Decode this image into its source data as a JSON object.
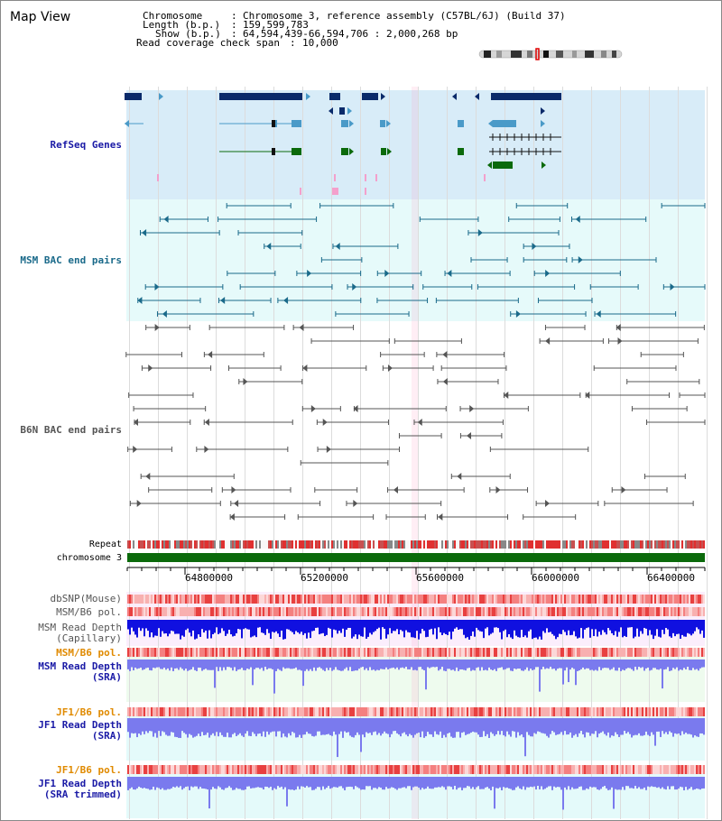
{
  "header": {
    "view_title": "Map View",
    "chromosome_label": "Chromosome",
    "chromosome_value": "Chromosome 3, reference assembly (C57BL/6J) (Build 37)",
    "length_label": "Length (b.p.)",
    "length_value": "159,599,783",
    "show_label": "Show (b.p.)",
    "show_value": "64,594,439-66,594,706 : 2,000,268 bp",
    "coverage_label": "Read coverage check span",
    "coverage_value": "10,000"
  },
  "tracks": {
    "refseq": "RefSeq Genes",
    "msm_bac": "MSM BAC end pairs",
    "b6n_bac": "B6N BAC end pairs",
    "repeat": "Repeat",
    "chromosome": "chromosome 3",
    "dbsnp": "dbSNP(Mouse)",
    "msm_b6_pol_1": "MSM/B6 pol.",
    "msm_read_depth_cap_1": "MSM Read Depth",
    "msm_read_depth_cap_2": "(Capillary)",
    "msm_b6_pol_2": "MSM/B6 pol.",
    "msm_read_depth_sra_1": "MSM Read Depth",
    "msm_read_depth_sra_2": "(SRA)",
    "jf1_b6_pol_1": "JF1/B6 pol.",
    "jf1_read_depth_sra_1": "JF1 Read Depth",
    "jf1_read_depth_sra_2": "(SRA)",
    "jf1_b6_pol_2": "JF1/B6 pol.",
    "jf1_read_depth_trim_1": "JF1 Read Depth",
    "jf1_read_depth_trim_2": "(SRA trimmed)"
  },
  "axis": {
    "tick_labels": [
      "64800000",
      "65200000",
      "65600000",
      "66000000",
      "66400000"
    ]
  },
  "colors": {
    "refseq_bg": "#d8ecf8",
    "msm_bac_bg": "#e6fafa",
    "pink_bg": "#fbeefc",
    "sra_green_bg": "#eefbee",
    "jf1_bg": "#e4fafa",
    "gene_dark": "#0a2a6a",
    "gene_mid": "#4a9ac8",
    "gene_green": "#0b6a0b",
    "msm_bac": "#1a6a8a",
    "b6n_bac": "#555555",
    "chromosome_bar": "#0b6a0b",
    "depth_dark_blue": "#1010e0",
    "depth_light_blue": "#7a7aee",
    "pol_label_orange": "#e08a00",
    "label_blue": "#1a1aa6"
  }
}
